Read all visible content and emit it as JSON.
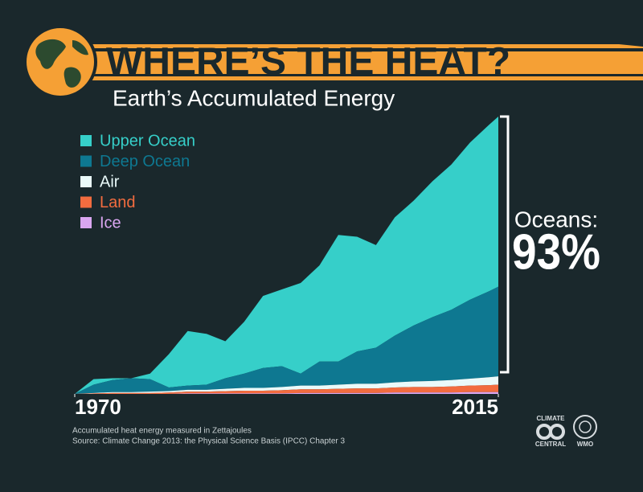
{
  "chart_data": {
    "type": "stacked_area",
    "title": "WHERE’S THE HEAT?",
    "subtitle": "Earth’s Accumulated Energy",
    "annotation": {
      "label": "Oceans:",
      "value": "93%"
    },
    "notes": [
      "Accumulated heat energy measured in Zettajoules",
      "Source: Climate Change 2013: the Physical Science Basis (IPCC) Chapter 3"
    ],
    "logos": [
      "CLIMATE",
      "CENTRAL",
      "WMO"
    ],
    "x": [
      1970,
      1972,
      1974,
      1976,
      1978,
      1980,
      1982,
      1984,
      1986,
      1988,
      1990,
      1992,
      1994,
      1996,
      1998,
      2000,
      2002,
      2004,
      2006,
      2008,
      2010,
      2012,
      2014,
      2015
    ],
    "xlim": [
      1970,
      2015
    ],
    "xticks": [
      1970,
      2015
    ],
    "ylim": [
      0,
      300
    ],
    "series": [
      {
        "name": "Upper Ocean",
        "color": "#36cfc9",
        "values": [
          0,
          6,
          2,
          0,
          6,
          36,
          59,
          55,
          40,
          56,
          78,
          83,
          98,
          104,
          137,
          124,
          111,
          128,
          135,
          147,
          157,
          170,
          180,
          184
        ]
      },
      {
        "name": "Deep Ocean",
        "color": "#0e7891",
        "values": [
          0,
          9,
          13,
          15,
          13.5,
          4,
          4.5,
          5.5,
          11.5,
          15.5,
          21.5,
          22.5,
          13,
          26,
          25,
          35,
          39,
          50.5,
          60.5,
          69,
          76,
          85.5,
          93,
          97
        ]
      },
      {
        "name": "Air",
        "color": "#eafafa",
        "values": [
          0,
          0.5,
          1,
          1,
          1.5,
          1.5,
          2,
          2,
          2.5,
          3,
          3,
          3.5,
          4,
          4,
          4.5,
          5,
          5,
          5.5,
          6,
          6.5,
          7,
          7.5,
          8.5,
          9
        ]
      },
      {
        "name": "Land",
        "color": "#f26c3f",
        "values": [
          0,
          0.5,
          1,
          1,
          1,
          1.5,
          2,
          2,
          2.5,
          3,
          3,
          3.5,
          4,
          4,
          4.5,
          5,
          5,
          5.5,
          6,
          6,
          6.5,
          7,
          7.5,
          8
        ]
      },
      {
        "name": "Ice",
        "color": "#d9a6f0",
        "values": [
          0,
          0,
          0,
          0,
          0,
          0,
          0.5,
          0.5,
          0.5,
          0.5,
          0.5,
          0.5,
          1,
          1,
          1,
          1,
          1,
          1.5,
          1.5,
          1.5,
          1.5,
          2,
          2,
          2
        ]
      }
    ]
  }
}
